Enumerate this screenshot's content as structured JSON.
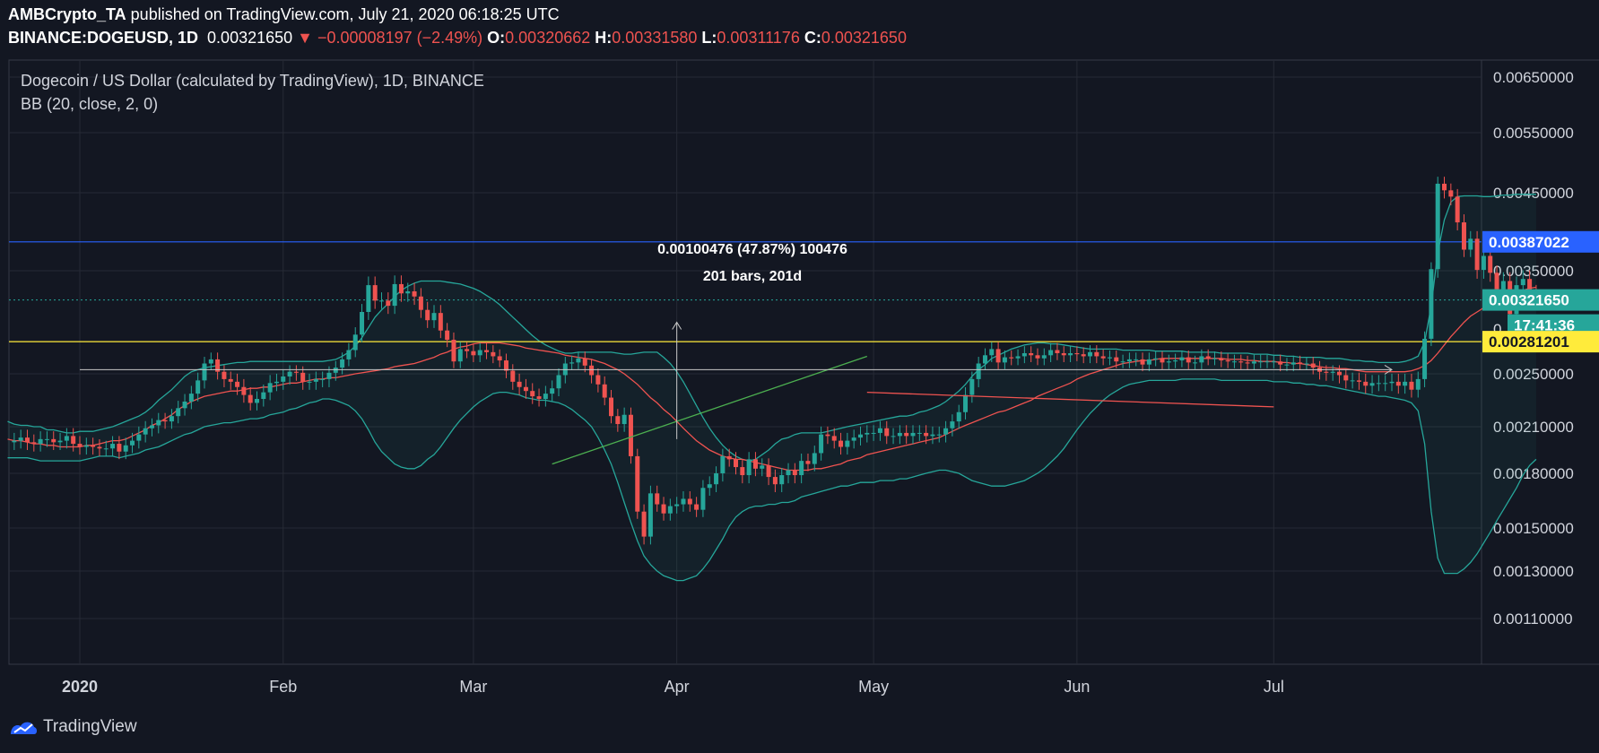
{
  "header": {
    "line1_author": "AMBCrypto_TA",
    "line1_rest": " published on TradingView.com, July 21, 2020 06:18:25 UTC",
    "symbol": "BINANCE:DOGEUSD, 1D",
    "last": "0.00321650",
    "change": "▼ −0.00008197 (−2.49%)",
    "o_label": "O:",
    "o": "0.00320662",
    "h_label": "H:",
    "h": "0.00331580",
    "l_label": "L:",
    "l": "0.00311176",
    "c_label": "C:",
    "c": "0.00321650"
  },
  "footer": {
    "brand": "TradingView",
    "icon": "tradingview-logo-icon"
  },
  "chart_data": {
    "type": "candlestick",
    "title": "Dogecoin / US Dollar (calculated by TradingView), 1D, BINANCE",
    "indicator": "BB (20, close, 2, 0)",
    "colors": {
      "up": "#26a69a",
      "down": "#ef5350",
      "band": "#26a69a",
      "basis": "#ef5350",
      "bg": "#131722",
      "resistance": "#2962ff",
      "support": "#ffeb3b"
    },
    "yaxis": {
      "ticks": [
        "0.00650000",
        "0.00550000",
        "0.00450000",
        "0.00350000",
        "0.00250000",
        "0.00210000",
        "0.00180000",
        "0.00150000",
        "0.00130000",
        "0.00110000"
      ],
      "tick_values": [
        0.0065,
        0.0055,
        0.0045,
        0.0035,
        0.0025,
        0.0021,
        0.0018,
        0.0015,
        0.0013,
        0.0011
      ],
      "partial_tick": "0."
    },
    "xaxis": {
      "labels": [
        "2020",
        "Feb",
        "Mar",
        "Apr",
        "May",
        "Jun",
        "Jul"
      ],
      "dates": [
        "2020-01-01",
        "2020-02-01",
        "2020-03-01",
        "2020-04-01",
        "2020-05-01",
        "2020-06-01",
        "2020-07-01"
      ]
    },
    "date_range": [
      "2019-12-21",
      "2020-07-21"
    ],
    "price_tags": [
      {
        "value": 0.00387022,
        "label": "0.00387022",
        "kind": "resistance"
      },
      {
        "value": 0.0032165,
        "label": "0.00321650",
        "kind": "last"
      },
      {
        "countdown": "17:41:36"
      },
      {
        "value": 0.00281201,
        "label": "0.00281201",
        "kind": "support"
      }
    ],
    "measurement": {
      "line1": "0.00100476 (47.87%) 100476",
      "line2": "201 bars, 201d"
    },
    "drawings": {
      "trendline_green": [
        [
          "2020-03-13",
          0.00186
        ],
        [
          "2020-04-30",
          0.00267
        ]
      ],
      "trendline_red": [
        [
          "2020-04-30",
          0.00236
        ],
        [
          "2020-07-01",
          0.00225
        ]
      ],
      "range_arrow_y": 0.00254,
      "range_arrow_dates": [
        "2020-01-01",
        "2020-07-19"
      ],
      "vertical_arrow": {
        "date": "2020-04-01",
        "from": 0.00202,
        "to": 0.003
      }
    },
    "daily_close": [
      0.002,
      0.00201,
      0.00203,
      0.002,
      0.00199,
      0.00202,
      0.00202,
      0.002,
      0.00201,
      0.00204,
      0.00199,
      0.00197,
      0.00198,
      0.00197,
      0.00196,
      0.00196,
      0.00199,
      0.00194,
      0.00198,
      0.00201,
      0.00205,
      0.00209,
      0.00211,
      0.00215,
      0.00214,
      0.00218,
      0.00224,
      0.00229,
      0.00235,
      0.00245,
      0.0026,
      0.00264,
      0.00252,
      0.00246,
      0.00244,
      0.0024,
      0.00234,
      0.00228,
      0.00231,
      0.00236,
      0.00243,
      0.00244,
      0.00248,
      0.00252,
      0.00251,
      0.00244,
      0.00244,
      0.00246,
      0.00246,
      0.00251,
      0.00256,
      0.00264,
      0.00273,
      0.00288,
      0.0031,
      0.00336,
      0.00321,
      0.00321,
      0.00316,
      0.00337,
      0.00328,
      0.0033,
      0.00325,
      0.00312,
      0.00302,
      0.00309,
      0.00292,
      0.00283,
      0.00262,
      0.00274,
      0.00272,
      0.00268,
      0.00273,
      0.00271,
      0.00267,
      0.00263,
      0.00253,
      0.00244,
      0.0024,
      0.00237,
      0.00233,
      0.00231,
      0.00235,
      0.00239,
      0.00249,
      0.0026,
      0.00261,
      0.00265,
      0.00258,
      0.00249,
      0.00242,
      0.00232,
      0.00218,
      0.00212,
      0.00219,
      0.00191,
      0.00159,
      0.00146,
      0.00169,
      0.00163,
      0.00158,
      0.00162,
      0.00163,
      0.00166,
      0.00163,
      0.0016,
      0.00172,
      0.00174,
      0.0018,
      0.00191,
      0.00189,
      0.00184,
      0.00179,
      0.00189,
      0.00183,
      0.00185,
      0.00178,
      0.00174,
      0.00179,
      0.00182,
      0.00179,
      0.00188,
      0.00186,
      0.00193,
      0.00205,
      0.00204,
      0.00201,
      0.00197,
      0.00201,
      0.00203,
      0.00205,
      0.00206,
      0.00206,
      0.00209,
      0.00204,
      0.00204,
      0.00206,
      0.00204,
      0.00206,
      0.00206,
      0.00204,
      0.00205,
      0.00205,
      0.00209,
      0.00214,
      0.00221,
      0.00234,
      0.00246,
      0.0026,
      0.00268,
      0.00274,
      0.00261,
      0.00266,
      0.00265,
      0.00267,
      0.0027,
      0.00268,
      0.00265,
      0.00268,
      0.00273,
      0.0027,
      0.00268,
      0.0027,
      0.00269,
      0.00267,
      0.00271,
      0.00267,
      0.00265,
      0.00266,
      0.00262,
      0.00262,
      0.00264,
      0.00264,
      0.00259,
      0.00264,
      0.00265,
      0.00261,
      0.00262,
      0.00263,
      0.00266,
      0.00261,
      0.00261,
      0.00267,
      0.00265,
      0.00265,
      0.00263,
      0.00262,
      0.00262,
      0.00261,
      0.0026,
      0.00262,
      0.00262,
      0.00262,
      0.00262,
      0.00259,
      0.00259,
      0.00261,
      0.0026,
      0.0026,
      0.00256,
      0.00252,
      0.00251,
      0.00252,
      0.00249,
      0.00245,
      0.00245,
      0.00244,
      0.00241,
      0.00243,
      0.00243,
      0.00243,
      0.00244,
      0.00241,
      0.00244,
      0.00238,
      0.00246,
      0.00284,
      0.00352,
      0.00465,
      0.00454,
      0.00445,
      0.00412,
      0.00377,
      0.00391,
      0.00351,
      0.00369,
      0.00348,
      0.00332,
      0.0034,
      0.00308,
      0.00336,
      0.00342,
      0.00328,
      0.00321
    ],
    "bb_upper": [
      0.00214,
      0.00212,
      0.00211,
      0.00211,
      0.0021,
      0.0021,
      0.00208,
      0.00208,
      0.00207,
      0.00206,
      0.00206,
      0.00207,
      0.00207,
      0.00207,
      0.00208,
      0.00209,
      0.0021,
      0.00212,
      0.00214,
      0.00216,
      0.00218,
      0.00221,
      0.00225,
      0.0023,
      0.00234,
      0.00238,
      0.00243,
      0.00248,
      0.00252,
      0.00254,
      0.00256,
      0.00257,
      0.00258,
      0.00259,
      0.0026,
      0.00261,
      0.00261,
      0.00262,
      0.00262,
      0.00262,
      0.00262,
      0.00262,
      0.00262,
      0.00262,
      0.00262,
      0.00262,
      0.00262,
      0.00262,
      0.00262,
      0.00263,
      0.00264,
      0.00267,
      0.00271,
      0.00277,
      0.00285,
      0.00295,
      0.00305,
      0.00312,
      0.00318,
      0.00325,
      0.00331,
      0.00335,
      0.00338,
      0.0034,
      0.0034,
      0.0034,
      0.0034,
      0.00339,
      0.00338,
      0.00337,
      0.00335,
      0.00333,
      0.0033,
      0.00326,
      0.00322,
      0.00317,
      0.00311,
      0.00305,
      0.00299,
      0.00293,
      0.00287,
      0.00282,
      0.00278,
      0.00275,
      0.00272,
      0.0027,
      0.0027,
      0.00271,
      0.00271,
      0.00271,
      0.00271,
      0.00271,
      0.00271,
      0.0027,
      0.00269,
      0.00269,
      0.0027,
      0.00271,
      0.00271,
      0.00271,
      0.00266,
      0.0026,
      0.00252,
      0.00244,
      0.00235,
      0.00226,
      0.00217,
      0.00209,
      0.00203,
      0.00198,
      0.00194,
      0.00191,
      0.00189,
      0.00188,
      0.00189,
      0.00192,
      0.00195,
      0.00199,
      0.00202,
      0.00203,
      0.00205,
      0.00206,
      0.00206,
      0.00206,
      0.00206,
      0.00207,
      0.00208,
      0.00209,
      0.0021,
      0.00211,
      0.00212,
      0.00213,
      0.00214,
      0.00215,
      0.00216,
      0.00217,
      0.00218,
      0.00218,
      0.00219,
      0.00221,
      0.00222,
      0.00224,
      0.00226,
      0.00229,
      0.00233,
      0.00237,
      0.00242,
      0.00248,
      0.00254,
      0.00259,
      0.00265,
      0.00268,
      0.00271,
      0.00274,
      0.00276,
      0.00278,
      0.00279,
      0.0028,
      0.0028,
      0.00279,
      0.00279,
      0.00278,
      0.00277,
      0.00276,
      0.00275,
      0.00274,
      0.00274,
      0.00274,
      0.00274,
      0.00274,
      0.00273,
      0.00273,
      0.00273,
      0.00273,
      0.00273,
      0.00272,
      0.00272,
      0.00272,
      0.00272,
      0.00272,
      0.00271,
      0.00271,
      0.00271,
      0.00271,
      0.00271,
      0.0027,
      0.0027,
      0.0027,
      0.0027,
      0.0027,
      0.00269,
      0.00269,
      0.00269,
      0.00268,
      0.00268,
      0.00267,
      0.00267,
      0.00266,
      0.00266,
      0.00266,
      0.00266,
      0.00265,
      0.00265,
      0.00265,
      0.00264,
      0.00263,
      0.00263,
      0.00262,
      0.00262,
      0.00261,
      0.00261,
      0.00261,
      0.00261,
      0.00262,
      0.00264,
      0.00267,
      0.00281,
      0.00316,
      0.00373,
      0.00415,
      0.00438,
      0.00445,
      0.00446,
      0.00446,
      0.00446,
      0.00445,
      0.00445,
      0.00446,
      0.00447,
      0.00447,
      0.00448,
      0.00448,
      0.00448,
      0.00448
    ],
    "bb_lower": [
      0.0019,
      0.0019,
      0.0019,
      0.0019,
      0.00189,
      0.00188,
      0.00188,
      0.00188,
      0.00188,
      0.00188,
      0.00188,
      0.00188,
      0.00189,
      0.0019,
      0.00191,
      0.00191,
      0.00191,
      0.0019,
      0.00191,
      0.00192,
      0.00193,
      0.00195,
      0.00196,
      0.00197,
      0.00199,
      0.00201,
      0.00203,
      0.00205,
      0.00206,
      0.00208,
      0.0021,
      0.00211,
      0.00212,
      0.00213,
      0.00213,
      0.00214,
      0.00215,
      0.00216,
      0.00216,
      0.00217,
      0.00219,
      0.0022,
      0.00221,
      0.00223,
      0.00224,
      0.00226,
      0.00228,
      0.00229,
      0.00231,
      0.00231,
      0.0023,
      0.00228,
      0.00226,
      0.00222,
      0.00216,
      0.00208,
      0.002,
      0.00194,
      0.0019,
      0.00186,
      0.00184,
      0.00183,
      0.00183,
      0.00185,
      0.00189,
      0.00192,
      0.00197,
      0.00203,
      0.00209,
      0.00215,
      0.0022,
      0.00225,
      0.00229,
      0.00232,
      0.00235,
      0.00236,
      0.00236,
      0.00235,
      0.00234,
      0.00232,
      0.00231,
      0.0023,
      0.0023,
      0.00229,
      0.00228,
      0.00226,
      0.00223,
      0.00219,
      0.00215,
      0.0021,
      0.00203,
      0.00195,
      0.00186,
      0.00175,
      0.00164,
      0.00153,
      0.00144,
      0.00137,
      0.00133,
      0.0013,
      0.00128,
      0.00127,
      0.00126,
      0.00126,
      0.00127,
      0.00128,
      0.00131,
      0.00135,
      0.0014,
      0.00145,
      0.00151,
      0.00156,
      0.00159,
      0.00161,
      0.00162,
      0.00162,
      0.00163,
      0.00163,
      0.00164,
      0.00164,
      0.00165,
      0.00167,
      0.00168,
      0.00169,
      0.0017,
      0.00171,
      0.00172,
      0.00173,
      0.00173,
      0.00174,
      0.00175,
      0.00175,
      0.00175,
      0.00176,
      0.00176,
      0.00176,
      0.00177,
      0.00177,
      0.00178,
      0.00179,
      0.0018,
      0.00181,
      0.00182,
      0.00182,
      0.00181,
      0.0018,
      0.00178,
      0.00176,
      0.00175,
      0.00174,
      0.00173,
      0.00173,
      0.00173,
      0.00174,
      0.00175,
      0.00176,
      0.00178,
      0.0018,
      0.00183,
      0.00187,
      0.00191,
      0.00196,
      0.00202,
      0.00208,
      0.00214,
      0.0022,
      0.00225,
      0.0023,
      0.00234,
      0.00237,
      0.0024,
      0.00242,
      0.00243,
      0.00244,
      0.00245,
      0.00245,
      0.00245,
      0.00245,
      0.00245,
      0.00246,
      0.00246,
      0.00246,
      0.00246,
      0.00246,
      0.00246,
      0.00245,
      0.00245,
      0.00245,
      0.00245,
      0.00245,
      0.00245,
      0.00245,
      0.00245,
      0.00244,
      0.00244,
      0.00244,
      0.00243,
      0.00243,
      0.00242,
      0.00242,
      0.00241,
      0.00241,
      0.0024,
      0.00239,
      0.00238,
      0.00237,
      0.00236,
      0.00235,
      0.00234,
      0.00233,
      0.00233,
      0.00232,
      0.00231,
      0.0023,
      0.00228,
      0.00222,
      0.00199,
      0.00159,
      0.00136,
      0.00129,
      0.00129,
      0.00129,
      0.00131,
      0.00134,
      0.00138,
      0.00143,
      0.00148,
      0.00154,
      0.0016,
      0.00166,
      0.00172,
      0.00179,
      0.00185,
      0.00189
    ],
    "bb_basis": [
      0.00202,
      0.00201,
      0.00201,
      0.002,
      0.00199,
      0.00199,
      0.00198,
      0.00198,
      0.00197,
      0.00197,
      0.00197,
      0.00197,
      0.00198,
      0.00198,
      0.00199,
      0.002,
      0.00201,
      0.00201,
      0.00202,
      0.00204,
      0.00206,
      0.00208,
      0.00211,
      0.00213,
      0.00216,
      0.00219,
      0.00223,
      0.00226,
      0.00229,
      0.00231,
      0.00233,
      0.00234,
      0.00235,
      0.00236,
      0.00237,
      0.00237,
      0.00238,
      0.00239,
      0.00239,
      0.0024,
      0.0024,
      0.00241,
      0.00242,
      0.00243,
      0.00243,
      0.00244,
      0.00245,
      0.00246,
      0.00246,
      0.00247,
      0.00247,
      0.00248,
      0.00249,
      0.0025,
      0.00251,
      0.00252,
      0.00253,
      0.00254,
      0.00255,
      0.00257,
      0.00258,
      0.00259,
      0.0026,
      0.00262,
      0.00264,
      0.00266,
      0.00269,
      0.00271,
      0.00274,
      0.00276,
      0.00277,
      0.00279,
      0.0028,
      0.0028,
      0.0028,
      0.0028,
      0.00279,
      0.00278,
      0.00277,
      0.00275,
      0.00274,
      0.00273,
      0.00272,
      0.00271,
      0.0027,
      0.00268,
      0.00267,
      0.00266,
      0.00265,
      0.00264,
      0.00262,
      0.0026,
      0.00257,
      0.00254,
      0.0025,
      0.00246,
      0.00242,
      0.00237,
      0.00232,
      0.00228,
      0.00223,
      0.00219,
      0.00214,
      0.00209,
      0.00205,
      0.00201,
      0.00198,
      0.00195,
      0.00193,
      0.00191,
      0.0019,
      0.00189,
      0.00189,
      0.00188,
      0.00187,
      0.00186,
      0.00185,
      0.00184,
      0.00183,
      0.00182,
      0.00182,
      0.00182,
      0.00182,
      0.00183,
      0.00183,
      0.00184,
      0.00185,
      0.00186,
      0.00188,
      0.00189,
      0.0019,
      0.00192,
      0.00193,
      0.00194,
      0.00195,
      0.00196,
      0.00197,
      0.00198,
      0.00199,
      0.002,
      0.00201,
      0.00202,
      0.00203,
      0.00205,
      0.00207,
      0.00209,
      0.00211,
      0.00213,
      0.00215,
      0.00217,
      0.00219,
      0.00221,
      0.00222,
      0.00224,
      0.00226,
      0.00228,
      0.0023,
      0.00233,
      0.00235,
      0.00237,
      0.00239,
      0.00241,
      0.00243,
      0.00246,
      0.00248,
      0.0025,
      0.00252,
      0.00254,
      0.00256,
      0.00258,
      0.0026,
      0.00261,
      0.00262,
      0.00263,
      0.00263,
      0.00264,
      0.00265,
      0.00265,
      0.00265,
      0.00265,
      0.00265,
      0.00265,
      0.00265,
      0.00265,
      0.00265,
      0.00265,
      0.00264,
      0.00264,
      0.00264,
      0.00263,
      0.00263,
      0.00262,
      0.00262,
      0.00262,
      0.00261,
      0.00261,
      0.0026,
      0.0026,
      0.00259,
      0.00258,
      0.00257,
      0.00256,
      0.00256,
      0.00255,
      0.00255,
      0.00254,
      0.00253,
      0.00252,
      0.00252,
      0.00252,
      0.00252,
      0.00252,
      0.00252,
      0.00252,
      0.00253,
      0.00255,
      0.00258,
      0.00263,
      0.0027,
      0.00278,
      0.00286,
      0.00293,
      0.003,
      0.00306,
      0.0031,
      0.00314,
      0.00318,
      0.00321,
      0.00324,
      0.00326,
      0.00328,
      0.00331,
      0.00333,
      0.00334
    ]
  }
}
